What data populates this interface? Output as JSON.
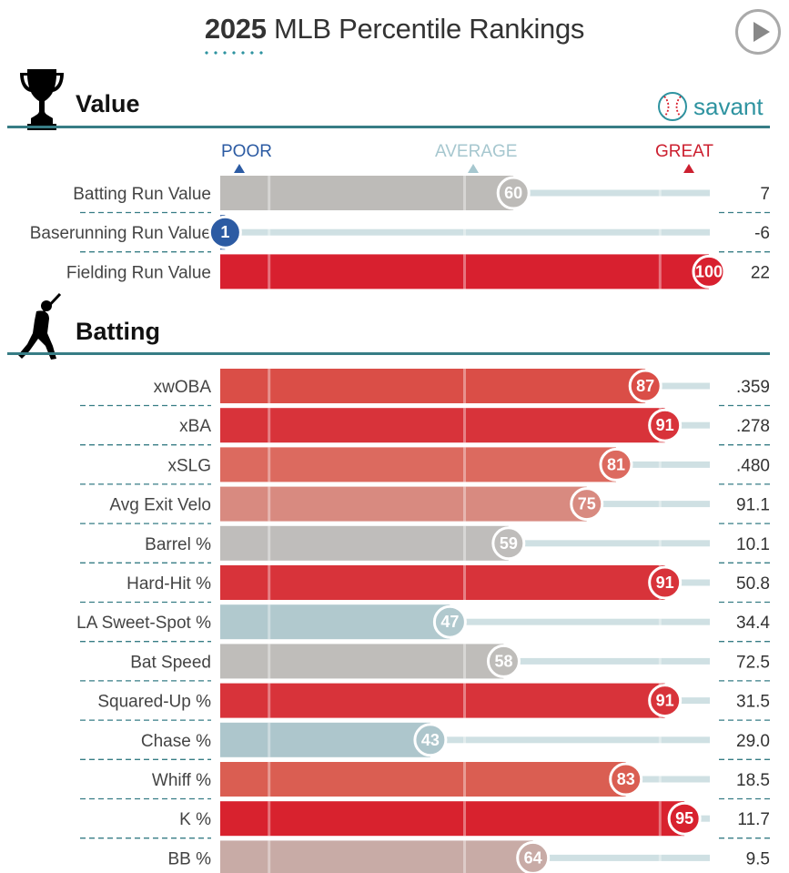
{
  "header": {
    "year": "2025",
    "title_rest": " MLB Percentile Rankings"
  },
  "icons": {
    "play": "play-icon",
    "trophy": "trophy-icon",
    "batter": "batter-icon",
    "savant_logo": "baseball-icon"
  },
  "brand": {
    "savant_label": "savant",
    "accent": "#2e93a0"
  },
  "scale": {
    "poor": "POOR",
    "average": "AVERAGE",
    "great": "GREAT",
    "poor_color": "#2c5ba3",
    "average_color": "#a6c7cf",
    "great_color": "#cc2030"
  },
  "sections": [
    {
      "key": "value",
      "title": "Value"
    },
    {
      "key": "batting",
      "title": "Batting"
    }
  ],
  "chart_data": {
    "type": "bar",
    "orientation": "horizontal",
    "xlim": [
      0,
      100
    ],
    "groups": [
      {
        "section": "Value",
        "rows": [
          {
            "metric": "Batting Run Value",
            "percentile": 60,
            "value": "7",
            "color": "#bdbbb8"
          },
          {
            "metric": "Baserunning Run Value",
            "percentile": 1,
            "value": "-6",
            "color": "#2c5ba3"
          },
          {
            "metric": "Fielding Run Value",
            "percentile": 100,
            "value": "22",
            "color": "#d8202f"
          }
        ]
      },
      {
        "section": "Batting",
        "rows": [
          {
            "metric": "xwOBA",
            "percentile": 87,
            "value": ".359",
            "color": "#da4e47"
          },
          {
            "metric": "xBA",
            "percentile": 91,
            "value": ".278",
            "color": "#d8333a"
          },
          {
            "metric": "xSLG",
            "percentile": 81,
            "value": ".480",
            "color": "#dc6a5f"
          },
          {
            "metric": "Avg Exit Velo",
            "percentile": 75,
            "value": "91.1",
            "color": "#d88a80"
          },
          {
            "metric": "Barrel %",
            "percentile": 59,
            "value": "10.1",
            "color": "#bfbdbb"
          },
          {
            "metric": "Hard-Hit %",
            "percentile": 91,
            "value": "50.8",
            "color": "#d8333a"
          },
          {
            "metric": "LA Sweet-Spot %",
            "percentile": 47,
            "value": "34.4",
            "color": "#b1c9ce"
          },
          {
            "metric": "Bat Speed",
            "percentile": 58,
            "value": "72.5",
            "color": "#bfbdba"
          },
          {
            "metric": "Squared-Up %",
            "percentile": 91,
            "value": "31.5",
            "color": "#d8333a"
          },
          {
            "metric": "Chase %",
            "percentile": 43,
            "value": "29.0",
            "color": "#adc6cc"
          },
          {
            "metric": "Whiff %",
            "percentile": 83,
            "value": "18.5",
            "color": "#da5e52"
          },
          {
            "metric": "K %",
            "percentile": 95,
            "value": "11.7",
            "color": "#d8222e"
          },
          {
            "metric": "BB %",
            "percentile": 64,
            "value": "9.5",
            "color": "#c8aba6"
          }
        ]
      }
    ]
  }
}
